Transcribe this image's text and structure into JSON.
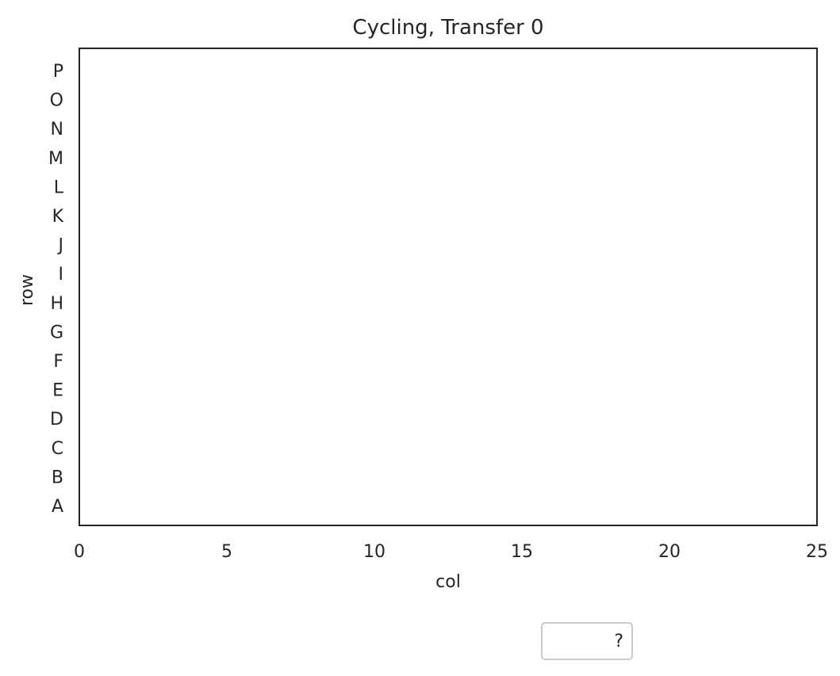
{
  "chart_data": {
    "type": "scatter",
    "title": "Cycling, Transfer 0",
    "xlabel": "col",
    "ylabel": "row",
    "xlim": [
      0,
      25
    ],
    "x_ticks": [
      0,
      5,
      10,
      15,
      20,
      25
    ],
    "y_categories": [
      "A",
      "B",
      "C",
      "D",
      "E",
      "F",
      "G",
      "H",
      "I",
      "J",
      "K",
      "L",
      "M",
      "N",
      "O",
      "P"
    ],
    "series": [],
    "grid": false,
    "legend": {
      "placement": "bottom-center",
      "entries": [
        "?"
      ]
    }
  }
}
